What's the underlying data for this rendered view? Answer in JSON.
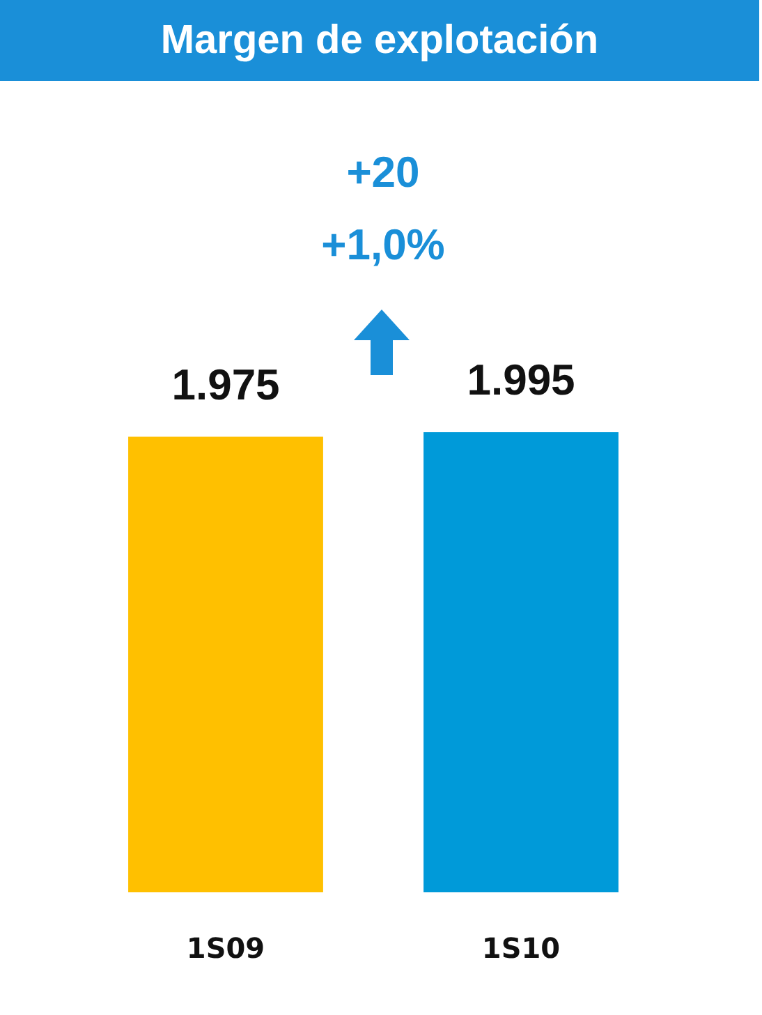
{
  "chart_data": {
    "type": "bar",
    "title": "Margen de explotación",
    "categories": [
      "1S09",
      "1S10"
    ],
    "values": [
      1975,
      1995
    ],
    "colors": [
      "#ffc000",
      "#009ad9"
    ],
    "value_labels": [
      "1.975",
      "1.995"
    ],
    "tick_labels": "x",
    "grid": false,
    "legend": false,
    "annotations": [
      "+20",
      "+1,0%"
    ]
  }
}
